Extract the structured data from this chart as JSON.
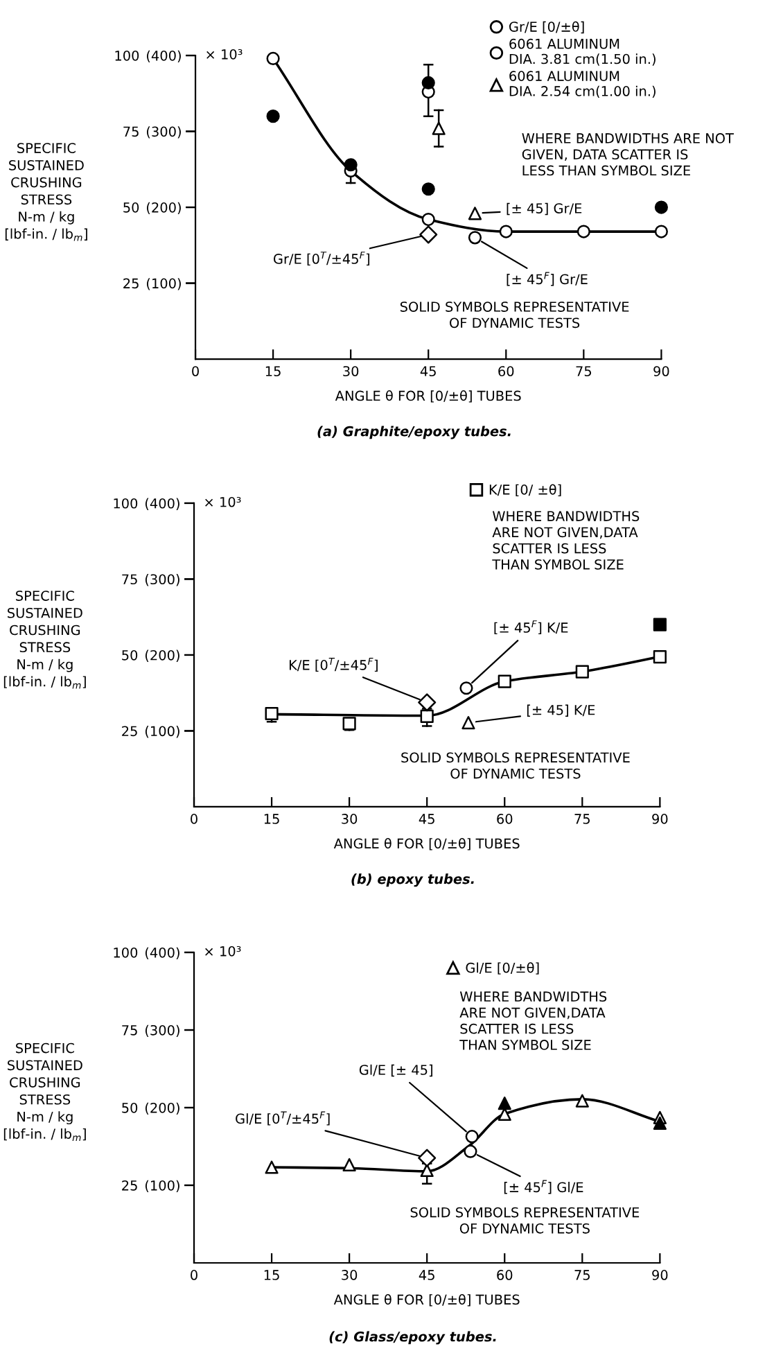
{
  "chart_data": [
    {
      "type": "scatter",
      "xlabel": "ANGLE θ FOR [0/±θ] TUBES",
      "ylabel": "SPECIFIC\nSUSTAINED\nCRUSHING\nSTRESS\nN-m / kg\n[lbf-in. / lb$_{m}$]",
      "xlim": [
        0,
        90
      ],
      "xticks": [
        0,
        15,
        30,
        45,
        60,
        75,
        90
      ],
      "ylim": [
        0,
        100
      ],
      "yticks": [
        25,
        50,
        75,
        100
      ],
      "y2lim": [
        0,
        400
      ],
      "y2ticks": [
        {
          "value": 100,
          "label": "(100)"
        },
        {
          "value": 200,
          "label": "(200)"
        },
        {
          "value": 300,
          "label": "(300)"
        },
        {
          "value": 400,
          "label": "(400)"
        }
      ],
      "legend": "top right",
      "series": [
        {
          "type": "line",
          "marker": "none",
          "color": "#000000",
          "x": [
            15,
            30,
            45,
            60,
            75,
            90
          ],
          "values": [
            99,
            62,
            46,
            42,
            42,
            42
          ]
        },
        {
          "name": "Gr/E [0/±θ]",
          "marker": "circle",
          "color": "#ffffff",
          "x": [
            15,
            30,
            45,
            60,
            75,
            90
          ],
          "values": [
            99,
            62,
            46,
            42,
            42,
            42
          ],
          "errors": [
            null,
            [
              58,
              62
            ],
            null,
            null,
            null,
            null
          ]
        },
        {
          "name": "6061 ALUMINUM\nDIA. 3.81 cm(1.50 in.)",
          "marker": "circle",
          "color": "#ffffff",
          "x": [
            45
          ],
          "values": [
            88
          ],
          "errors": [
            [
              80,
              97
            ]
          ]
        },
        {
          "name": "6061 ALUMINUM\nDIA. 2.54 cm(1.00 in.)",
          "marker": "triangle",
          "color": "#ffffff",
          "x": [
            47
          ],
          "values": [
            76
          ],
          "errors": [
            [
              70,
              82
            ]
          ]
        },
        {
          "marker": "circle",
          "color": "#000000",
          "x": [
            15,
            30,
            45,
            45,
            90
          ],
          "values": [
            80,
            64,
            91,
            56,
            50
          ]
        },
        {
          "marker": "diamond",
          "color": "#ffffff",
          "x": [
            45
          ],
          "values": [
            41
          ]
        },
        {
          "marker": "triangle",
          "color": "#ffffff",
          "x": [
            54
          ],
          "values": [
            48
          ]
        },
        {
          "marker": "circle",
          "color": "#ffffff",
          "x": [
            54
          ],
          "values": [
            40
          ]
        }
      ],
      "annotations": [
        "× 10³",
        "WHERE BANDWIDTHS ARE NOT\nGIVEN, DATA SCATTER IS\nLESS THAN SYMBOL SIZE",
        {
          "text": "Gr/E [0$^{T}$/±45$^{F}$]",
          "x": 45,
          "y": 41
        },
        {
          "text": "[± 45] Gr/E",
          "x": 54,
          "y": 48
        },
        {
          "text": "[± 45$^{F}$] Gr/E",
          "x": 54,
          "y": 40
        },
        "SOLID SYMBOLS REPRESENTATIVE\nOF DYNAMIC TESTS",
        "(a) Graphite/epoxy tubes."
      ]
    },
    {
      "type": "scatter",
      "xlabel": "ANGLE θ FOR [0/±θ] TUBES",
      "ylabel": "SPECIFIC\nSUSTAINED\nCRUSHING\nSTRESS\nN-m / kg\n[lbf-in. / lb$_{m}$]",
      "xlim": [
        0,
        90
      ],
      "xticks": [
        0,
        15,
        30,
        45,
        60,
        75,
        90
      ],
      "ylim": [
        0,
        100
      ],
      "yticks": [
        25,
        50,
        75,
        100
      ],
      "y2lim": [
        0,
        400
      ],
      "y2ticks": [
        {
          "value": 100,
          "label": "(100)"
        },
        {
          "value": 200,
          "label": "(200)"
        },
        {
          "value": 300,
          "label": "(300)"
        },
        {
          "value": 400,
          "label": "(400)"
        }
      ],
      "legend": "top right",
      "series": [
        {
          "type": "line",
          "marker": "none",
          "color": "#000000",
          "x": [
            15,
            45,
            60,
            75,
            90
          ],
          "values": [
            30.5,
            30,
            41.3,
            44.5,
            49.4
          ]
        },
        {
          "name": "K/E [0/ ±θ]",
          "marker": "square",
          "color": "#ffffff",
          "x": [
            15,
            30,
            45,
            60,
            75,
            90
          ],
          "values": [
            30.7,
            27.4,
            29.8,
            41.3,
            44.5,
            49.4
          ],
          "errors": [
            [
              28,
              31
            ],
            [
              25.3,
              27.4
            ],
            [
              26.6,
              32.3
            ],
            null,
            null,
            null
          ]
        },
        {
          "marker": "square",
          "color": "#000000",
          "x": [
            90
          ],
          "values": [
            60
          ]
        },
        {
          "marker": "diamond",
          "color": "#ffffff",
          "x": [
            45
          ],
          "values": [
            34.4
          ]
        },
        {
          "marker": "circle",
          "color": "#ffffff",
          "x": [
            52.6
          ],
          "values": [
            39.1
          ]
        },
        {
          "marker": "triangle",
          "color": "#ffffff",
          "x": [
            53
          ],
          "values": [
            27.7
          ]
        }
      ],
      "annotations": [
        "× 10³",
        "WHERE BANDWIDTHS\nARE NOT GIVEN,DATA\nSCATTER IS LESS\nTHAN SYMBOL SIZE",
        {
          "text": "K/E [0$^{T}$/±45$^{F}$]",
          "x": 45,
          "y": 34.4
        },
        {
          "text": "[± 45$^{F}$] K/E",
          "x": 52.6,
          "y": 39.1
        },
        {
          "text": "[± 45] K/E",
          "x": 53,
          "y": 27.7
        },
        "SOLID SYMBOLS REPRESENTATIVE\nOF DYNAMIC TESTS",
        "(b) epoxy tubes."
      ]
    },
    {
      "type": "scatter",
      "xlabel": "ANGLE θ FOR [0/±θ] TUBES",
      "ylabel": "SPECIFIC\nSUSTAINED\nCRUSHING\nSTRESS\nN-m / kg\n[lbf-in. / lb$_{m}$]",
      "xlim": [
        0,
        90
      ],
      "xticks": [
        0,
        15,
        30,
        45,
        60,
        75,
        90
      ],
      "ylim": [
        0,
        100
      ],
      "yticks": [
        25,
        50,
        75,
        100
      ],
      "y2lim": [
        0,
        400
      ],
      "y2ticks": [
        {
          "value": 100,
          "label": "(100)"
        },
        {
          "value": 200,
          "label": "(200)"
        },
        {
          "value": 300,
          "label": "(300)"
        },
        {
          "value": 400,
          "label": "(400)"
        }
      ],
      "legend": "top right",
      "series": [
        {
          "type": "line",
          "marker": "none",
          "color": "#000000",
          "x": [
            15,
            30,
            45,
            53,
            60,
            75,
            90
          ],
          "values": [
            30.8,
            30.5,
            29.5,
            37.5,
            48,
            52.7,
            45.5
          ]
        },
        {
          "name": "Gl/E [0/±θ]",
          "marker": "triangle",
          "color": "#ffffff",
          "x": [
            15,
            30,
            45,
            60,
            75,
            90
          ],
          "values": [
            30.8,
            31.6,
            29.8,
            47.9,
            52.2,
            46.8
          ],
          "errors": [
            null,
            null,
            [
              25.5,
              32
            ],
            null,
            null,
            null
          ]
        },
        {
          "marker": "triangle",
          "color": "#000000",
          "x": [
            60,
            90
          ],
          "values": [
            51.4,
            45
          ]
        },
        {
          "marker": "diamond",
          "color": "#ffffff",
          "x": [
            45
          ],
          "values": [
            33.8
          ]
        },
        {
          "marker": "circle",
          "color": "#ffffff",
          "x": [
            53.7
          ],
          "values": [
            40.7
          ]
        },
        {
          "marker": "circle",
          "color": "#ffffff",
          "x": [
            53.4
          ],
          "values": [
            35.9
          ]
        }
      ],
      "annotations": [
        "× 10³",
        "WHERE BANDWIDTHS\nARE NOT GIVEN,DATA\nSCATTER IS LESS\nTHAN SYMBOL SIZE",
        {
          "text": "Gl/E [0$^{T}$/±45$^{F}$]",
          "x": 45,
          "y": 33.8
        },
        {
          "text": "Gl/E [± 45]",
          "x": 53.7,
          "y": 40.7
        },
        {
          "text": "[± 45$^{F}$] Gl/E",
          "x": 53.4,
          "y": 35.9
        },
        "SOLID SYMBOLS REPRESENTATIVE\nOF DYNAMIC TESTS",
        "(c) Glass/epoxy tubes."
      ]
    }
  ]
}
